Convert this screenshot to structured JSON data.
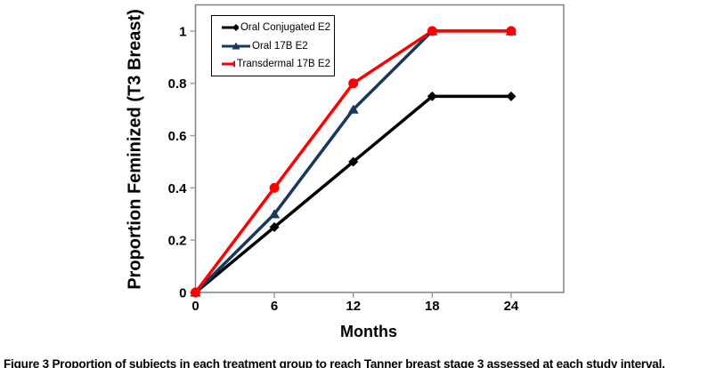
{
  "figure": {
    "caption_label": "Figure 3",
    "caption_text": "Proportion of subjects in each treatment group to reach Tanner breast stage 3 assessed at each study interval."
  },
  "chart_data": {
    "type": "line",
    "title": "",
    "xlabel": "Months",
    "ylabel": "Proportion Feminized (T3 Breast)",
    "x": [
      0,
      6,
      12,
      18,
      24
    ],
    "series": [
      {
        "name": "Oral Conjugated E2",
        "values": [
          0,
          0.25,
          0.5,
          0.75,
          0.75
        ],
        "color": "#000000",
        "marker": "diamond"
      },
      {
        "name": "Oral 17B E2",
        "values": [
          0,
          0.3,
          0.7,
          1.0,
          1.0
        ],
        "color": "#17375E",
        "marker": "triangle"
      },
      {
        "name": "Transdermal 17B E2",
        "values": [
          0,
          0.4,
          0.8,
          1.0,
          1.0
        ],
        "color": "#FF0000",
        "marker": "circle"
      }
    ],
    "xticks": [
      0,
      6,
      12,
      18,
      24
    ],
    "xtick_labels": [
      "0",
      "6",
      "12",
      "18",
      "24"
    ],
    "yticks": [
      0,
      0.2,
      0.4,
      0.6,
      0.8,
      1
    ],
    "ytick_labels": [
      "0",
      "0.2",
      "0.4",
      "0.6",
      "0.8",
      "1"
    ],
    "xlim": [
      0,
      28
    ],
    "ylim": [
      0,
      1.1
    ],
    "grid": false,
    "legend_position": "top-left",
    "colors": {
      "axis_border": "#808080",
      "tick": "#999999",
      "text": "#000000",
      "plot_background": "#ffffff"
    }
  }
}
